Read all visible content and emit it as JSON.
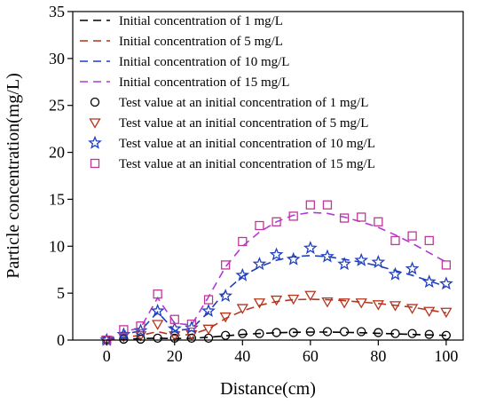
{
  "chart_data": {
    "type": "line",
    "xlabel": "Distance(cm)",
    "ylabel": "Particle concentration(mg/L)",
    "xlim": [
      -10,
      105
    ],
    "ylim": [
      0,
      35
    ],
    "x_ticks": [
      0,
      20,
      40,
      60,
      80,
      100
    ],
    "y_ticks": [
      0,
      5,
      10,
      15,
      20,
      25,
      30,
      35
    ],
    "grid": false,
    "legend_position": "top-left",
    "series": [
      {
        "name": "Initial concentration of 1 mg/L",
        "kind": "line",
        "style": "dashed",
        "color": "#000000",
        "x": [
          0,
          5,
          10,
          15,
          20,
          25,
          30,
          35,
          40,
          45,
          50,
          55,
          60,
          65,
          70,
          75,
          80,
          85,
          90,
          95,
          100
        ],
        "y": [
          0.0,
          0.1,
          0.15,
          0.2,
          0.15,
          0.2,
          0.3,
          0.45,
          0.6,
          0.7,
          0.78,
          0.82,
          0.85,
          0.85,
          0.82,
          0.78,
          0.72,
          0.66,
          0.6,
          0.55,
          0.5
        ]
      },
      {
        "name": "Initial concentration of 5 mg/L",
        "kind": "line",
        "style": "dashed",
        "color": "#b5341e",
        "x": [
          0,
          5,
          10,
          15,
          20,
          25,
          30,
          35,
          40,
          45,
          50,
          55,
          60,
          65,
          70,
          75,
          80,
          85,
          90,
          95,
          100
        ],
        "y": [
          0.0,
          0.3,
          0.5,
          0.9,
          0.5,
          0.6,
          1.2,
          2.3,
          3.1,
          3.7,
          4.1,
          4.3,
          4.35,
          4.3,
          4.2,
          4.05,
          3.9,
          3.7,
          3.5,
          3.2,
          2.9
        ]
      },
      {
        "name": "Initial concentration of 10 mg/L",
        "kind": "line",
        "style": "dashed",
        "color": "#1f3fbf",
        "x": [
          0,
          5,
          10,
          15,
          20,
          25,
          30,
          35,
          40,
          45,
          50,
          55,
          60,
          65,
          70,
          75,
          80,
          85,
          90,
          95,
          100
        ],
        "y": [
          0.0,
          0.6,
          1.0,
          3.0,
          1.0,
          1.2,
          3.0,
          5.2,
          6.8,
          7.8,
          8.5,
          8.9,
          9.0,
          8.9,
          8.6,
          8.3,
          7.9,
          7.4,
          6.9,
          6.3,
          5.7
        ]
      },
      {
        "name": "Initial concentration of 15 mg/L",
        "kind": "line",
        "style": "dashed",
        "color": "#b03ad6",
        "x": [
          0,
          5,
          10,
          15,
          20,
          25,
          30,
          35,
          40,
          45,
          50,
          55,
          60,
          65,
          70,
          75,
          80,
          85,
          90,
          95,
          100
        ],
        "y": [
          0.0,
          0.9,
          1.3,
          4.5,
          1.8,
          1.6,
          4.6,
          7.8,
          10.0,
          11.5,
          12.6,
          13.3,
          13.6,
          13.5,
          13.1,
          12.6,
          12.0,
          11.2,
          10.3,
          9.3,
          8.3
        ]
      },
      {
        "name": "Test value at an initial concentration of 1 mg/L",
        "kind": "scatter",
        "marker": "circle",
        "color": "#000000",
        "x": [
          0,
          5,
          10,
          15,
          20,
          25,
          30,
          35,
          40,
          45,
          50,
          55,
          60,
          65,
          70,
          75,
          80,
          85,
          90,
          95,
          100
        ],
        "y": [
          0.0,
          0.1,
          0.1,
          0.2,
          0.2,
          0.2,
          0.2,
          0.5,
          0.7,
          0.7,
          0.8,
          0.8,
          0.9,
          0.9,
          0.9,
          0.9,
          0.8,
          0.7,
          0.7,
          0.6,
          0.5
        ]
      },
      {
        "name": "Test value at an initial concentration of 5 mg/L",
        "kind": "scatter",
        "marker": "triangle-down",
        "color": "#b5341e",
        "x": [
          0,
          5,
          10,
          15,
          20,
          25,
          30,
          35,
          40,
          45,
          50,
          55,
          60,
          65,
          70,
          75,
          80,
          85,
          90,
          95,
          100
        ],
        "y": [
          0.0,
          0.4,
          0.5,
          1.7,
          0.5,
          0.6,
          1.2,
          2.5,
          3.4,
          4.0,
          4.3,
          4.4,
          4.8,
          4.1,
          4.0,
          4.0,
          3.8,
          3.7,
          3.4,
          3.1,
          3.0
        ]
      },
      {
        "name": "Test value at an initial concentration of 10 mg/L",
        "kind": "scatter",
        "marker": "star",
        "color": "#1f3fbf",
        "x": [
          0,
          5,
          10,
          15,
          20,
          25,
          30,
          35,
          40,
          45,
          50,
          55,
          60,
          65,
          70,
          75,
          80,
          85,
          90,
          95,
          100
        ],
        "y": [
          0.0,
          0.6,
          1.0,
          3.1,
          1.2,
          1.3,
          3.1,
          4.7,
          6.9,
          8.1,
          9.1,
          8.6,
          9.8,
          8.9,
          8.1,
          8.5,
          8.3,
          7.0,
          7.6,
          6.2,
          6.0
        ]
      },
      {
        "name": "Test value at an initial concentration of 15 mg/L",
        "kind": "scatter",
        "marker": "square",
        "color": "#c0379a",
        "x": [
          0,
          5,
          10,
          15,
          20,
          25,
          30,
          35,
          40,
          45,
          50,
          55,
          60,
          65,
          70,
          75,
          80,
          85,
          90,
          95,
          100
        ],
        "y": [
          0.0,
          1.1,
          1.5,
          4.9,
          2.2,
          1.7,
          4.3,
          8.0,
          10.5,
          12.2,
          12.6,
          13.2,
          14.4,
          14.4,
          13.0,
          13.1,
          12.6,
          10.6,
          11.1,
          10.6,
          8.0
        ]
      }
    ]
  }
}
